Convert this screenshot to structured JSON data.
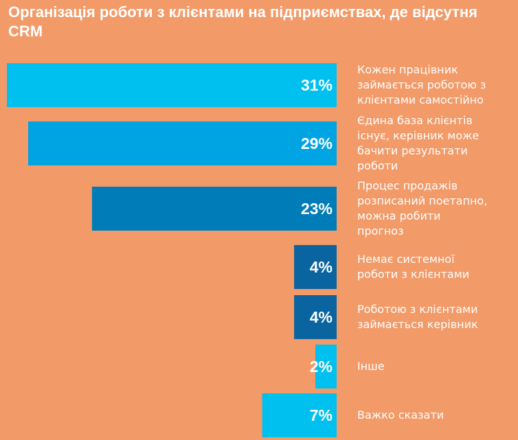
{
  "title": "Організація роботи з клієнтами на підприємствах, де відсутня CRM",
  "chart_data": {
    "type": "bar",
    "orientation": "horizontal",
    "title": "Організація роботи з клієнтами на підприємствах, де відсутня CRM",
    "xlabel": "",
    "ylabel": "",
    "grid": false,
    "legend": "none",
    "unit": "%",
    "categories": [
      [
        "Кожен працівник",
        "займається роботою з",
        "клієнтами самостійно"
      ],
      [
        "Єдина база клієнтів",
        "існує, керівник може",
        "бачити результати",
        "роботи"
      ],
      [
        "Процес продажів",
        "розписаний поетапно,",
        "можна робити",
        "прогноз"
      ],
      [
        "Немає системної",
        "роботи з клієнтами"
      ],
      [
        "Роботою з клієнтами",
        "займається керівник"
      ],
      [
        "Інше"
      ],
      [
        "Важко сказати"
      ]
    ],
    "values": [
      31,
      29,
      23,
      4,
      4,
      2,
      7
    ],
    "value_labels": [
      "31%",
      "29%",
      "23%",
      "4%",
      "4%",
      "2%",
      "7%"
    ],
    "colors": [
      "#00C0F0",
      "#00A4E2",
      "#007DB8",
      "#0A64A0",
      "#0A64A0",
      "#00C0F0",
      "#00C0F0"
    ],
    "background": "#F29A68"
  }
}
